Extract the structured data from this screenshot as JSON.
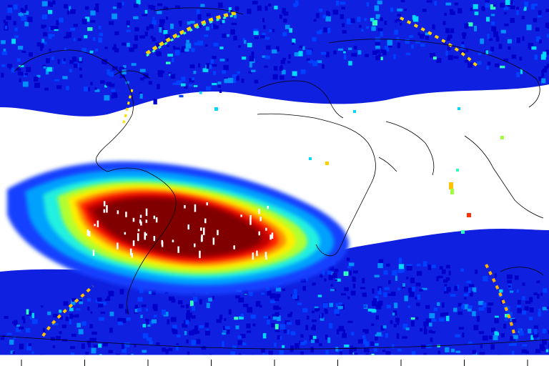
{
  "map": {
    "projection": "equirectangular",
    "extent": {
      "lon": [
        -180,
        180
      ],
      "lat": [
        -90,
        90
      ]
    },
    "background": "#ffffff",
    "coastline_color": "#000000",
    "colormap": [
      "#0000c8",
      "#0040ff",
      "#0090ff",
      "#00d8ff",
      "#30ffc0",
      "#a0ff40",
      "#ffff00",
      "#ffa000",
      "#ff3000",
      "#d00000",
      "#800000"
    ],
    "tick_count": 9,
    "features": {
      "south_atlantic_anomaly": {
        "center_lon": -45,
        "center_lat": -25,
        "peak_level": 1.0
      },
      "high_latitude_bands": [
        "north",
        "south"
      ]
    }
  }
}
